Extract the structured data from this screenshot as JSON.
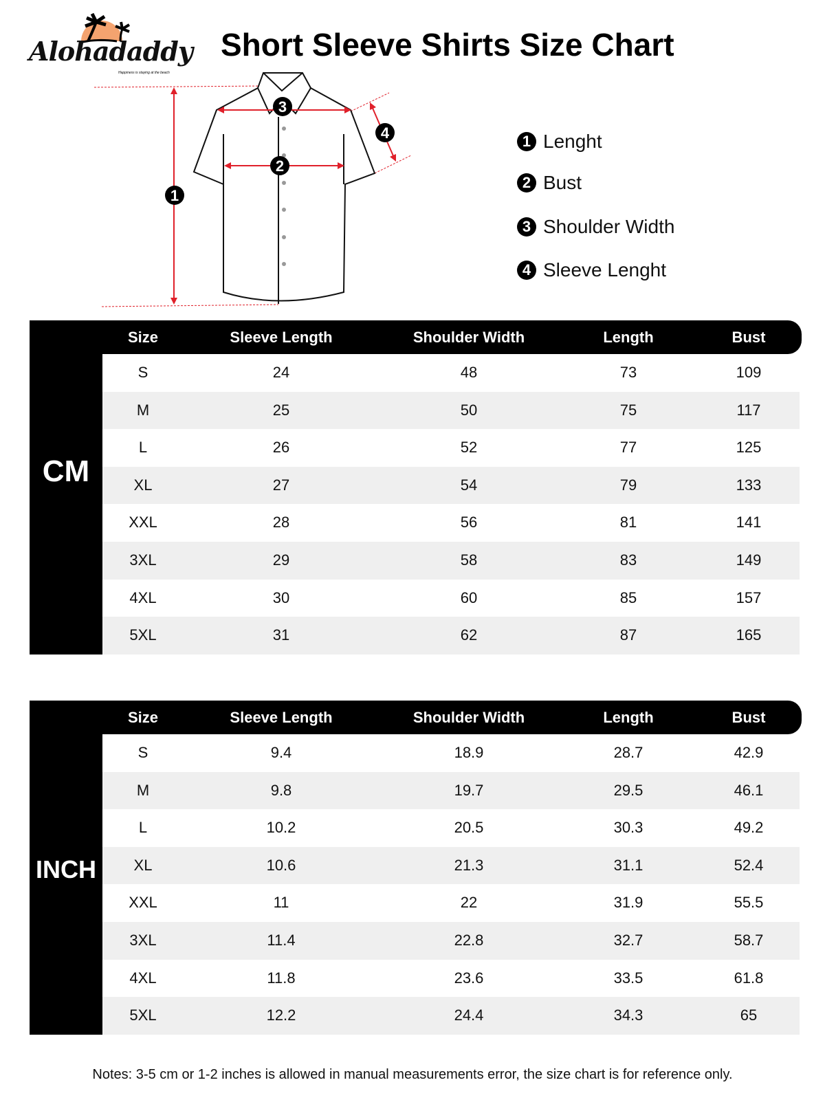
{
  "brand": {
    "name": "Alohadaddy",
    "tagline": "Happiness is staying at the beach",
    "logo_sun_color": "#f4a36f"
  },
  "title": "Short Sleeve Shirts Size Chart",
  "measure_color": "#e0202a",
  "legend": [
    {
      "num": "1",
      "label": "Lenght"
    },
    {
      "num": "2",
      "label": "Bust"
    },
    {
      "num": "3",
      "label": "Shoulder Width"
    },
    {
      "num": "4",
      "label": "Sleeve Lenght"
    }
  ],
  "columns": [
    "Size",
    "Sleeve Length",
    "Shoulder Width",
    "Length",
    "Bust"
  ],
  "tables": [
    {
      "unit": "CM",
      "rows": [
        [
          "S",
          "24",
          "48",
          "73",
          "109"
        ],
        [
          "M",
          "25",
          "50",
          "75",
          "117"
        ],
        [
          "L",
          "26",
          "52",
          "77",
          "125"
        ],
        [
          "XL",
          "27",
          "54",
          "79",
          "133"
        ],
        [
          "XXL",
          "28",
          "56",
          "81",
          "141"
        ],
        [
          "3XL",
          "29",
          "58",
          "83",
          "149"
        ],
        [
          "4XL",
          "30",
          "60",
          "85",
          "157"
        ],
        [
          "5XL",
          "31",
          "62",
          "87",
          "165"
        ]
      ]
    },
    {
      "unit": "INCH",
      "rows": [
        [
          "S",
          "9.4",
          "18.9",
          "28.7",
          "42.9"
        ],
        [
          "M",
          "9.8",
          "19.7",
          "29.5",
          "46.1"
        ],
        [
          "L",
          "10.2",
          "20.5",
          "30.3",
          "49.2"
        ],
        [
          "XL",
          "10.6",
          "21.3",
          "31.1",
          "52.4"
        ],
        [
          "XXL",
          "11",
          "22",
          "31.9",
          "55.5"
        ],
        [
          "3XL",
          "11.4",
          "22.8",
          "32.7",
          "58.7"
        ],
        [
          "4XL",
          "11.8",
          "23.6",
          "33.5",
          "61.8"
        ],
        [
          "5XL",
          "12.2",
          "24.4",
          "34.3",
          "65"
        ]
      ]
    }
  ],
  "notes": "Notes: 3-5 cm or 1-2 inches is allowed in manual measurements error, the size chart is for reference only."
}
